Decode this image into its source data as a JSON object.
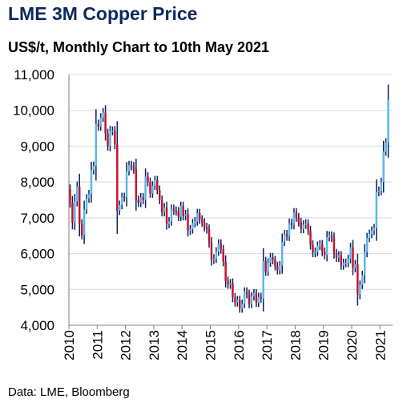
{
  "title": "LME 3M Copper Price",
  "subtitle": "US$/t, Monthly Chart to 10th May 2021",
  "source": "Data: LME, Bloomberg",
  "colors": {
    "title": "#0b2a5b",
    "up": "#5bb4ea",
    "down": "#c8102e",
    "wick": "#0b1f5c",
    "grid": "#d9d9d9"
  },
  "chart_data": {
    "type": "candlestick-ohlc",
    "title": "LME 3M Copper Price",
    "subtitle": "US$/t, Monthly Chart to 10th May 2021",
    "ylim": [
      4000,
      11000
    ],
    "yticks": [
      4000,
      5000,
      6000,
      7000,
      8000,
      9000,
      10000,
      11000
    ],
    "ytick_labels": [
      "4,000",
      "5,000",
      "6,000",
      "7,000",
      "8,000",
      "9,000",
      "10,000",
      "11,000"
    ],
    "xlim": [
      2010,
      2021.42
    ],
    "xticks": [
      2010,
      2011,
      2012,
      2013,
      2014,
      2015,
      2016,
      2017,
      2018,
      2019,
      2020,
      2021
    ],
    "xtick_labels": [
      "2010",
      "2011",
      "2012",
      "2013",
      "2014",
      "2015",
      "2016",
      "2017",
      "2018",
      "2019",
      "2020",
      "2021"
    ],
    "grid": "horizontal",
    "close": [
      7420,
      6870,
      7460,
      7870,
      6840,
      6520,
      7230,
      7540,
      7660,
      8330,
      8450,
      9620,
      9550,
      9800,
      9940,
      9360,
      9000,
      9420,
      9430,
      9050,
      7200,
      7360,
      7580,
      7570,
      8300,
      8470,
      8440,
      8350,
      7500,
      7420,
      7570,
      7500,
      8150,
      8000,
      7680,
      7900,
      8050,
      7780,
      7500,
      7160,
      7290,
      6830,
      6900,
      7250,
      7200,
      7180,
      7030,
      7330,
      7050,
      7100,
      6640,
      6680,
      6850,
      6900,
      7130,
      6950,
      6870,
      6740,
      6680,
      6300,
      5830,
      5860,
      6060,
      6280,
      6120,
      5770,
      5240,
      5140,
      5170,
      4780,
      4640,
      4700,
      4470,
      4600,
      4940,
      4870,
      4600,
      4810,
      4890,
      4630,
      4790,
      4750,
      5790,
      5500,
      5750,
      5900,
      5820,
      5650,
      5540,
      5670,
      6330,
      6540,
      6480,
      6850,
      6800,
      7150,
      7010,
      6880,
      6690,
      6810,
      6840,
      6640,
      6250,
      6020,
      6050,
      6220,
      6260,
      6050,
      5960,
      6460,
      6500,
      6440,
      6010,
      5890,
      5950,
      5670,
      5740,
      5740,
      5850,
      6180,
      5600,
      5700,
      4850,
      5130,
      5400,
      6040,
      6440,
      6550,
      6640,
      6710,
      7720,
      7750,
      8000,
      8850,
      9100,
      10300
    ]
  }
}
